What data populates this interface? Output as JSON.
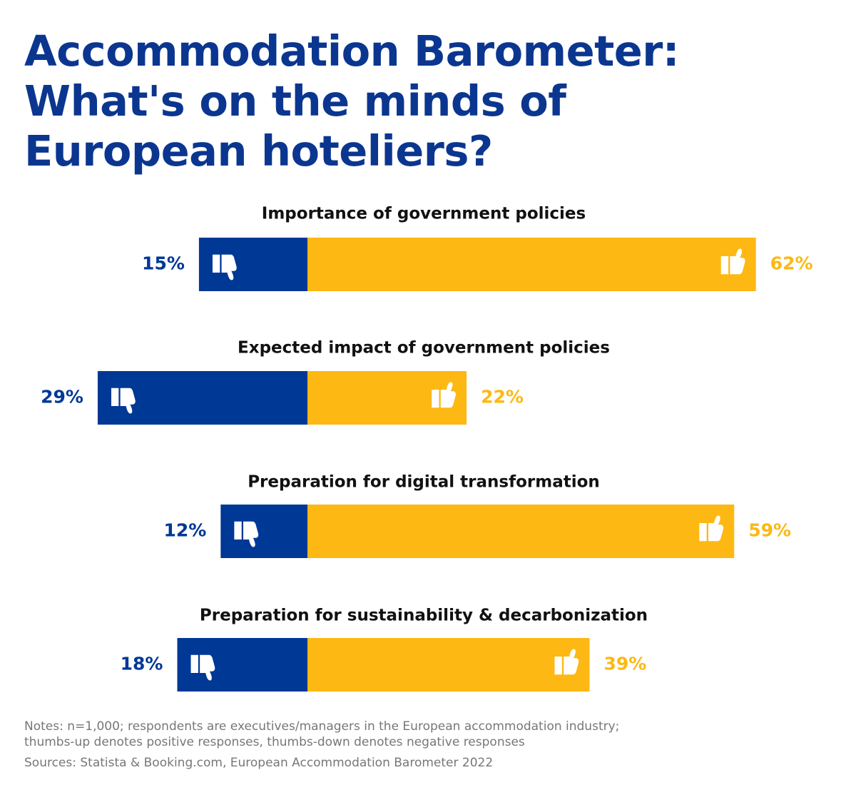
{
  "title_lines": [
    "Accommodation Barometer:",
    "What's on the minds of",
    "European hoteliers?"
  ],
  "colors": {
    "negative": "#003896",
    "positive": "#FDB813",
    "title": "#0B3690",
    "label": "#111111",
    "notes": "#777777",
    "icon": "#ffffff"
  },
  "icons": {
    "negative": "thumbs-down-icon",
    "positive": "thumbs-up-icon"
  },
  "chart_data": {
    "type": "bar",
    "orientation": "horizontal-diverging",
    "categories": [
      "Importance of government policies",
      "Expected impact of government policies",
      "Preparation for digital transformation",
      "Preparation for sustainability & decarbonization"
    ],
    "series": [
      {
        "values": [
          15,
          29,
          12,
          18
        ],
        "labels": [
          "15%",
          "29%",
          "12%",
          "18%"
        ]
      },
      {
        "values": [
          62,
          22,
          59,
          39
        ],
        "labels": [
          "62%",
          "22%",
          "59%",
          "39%"
        ]
      }
    ],
    "unit": "%",
    "grid": false
  },
  "notes": {
    "line1": "Notes: n=1,000; respondents are executives/managers in the European accommodation industry;",
    "line2": "thumbs-up denotes positive responses, thumbs-down denotes negative responses",
    "sources": "Sources: Statista & Booking.com, European Accommodation Barometer 2022"
  }
}
